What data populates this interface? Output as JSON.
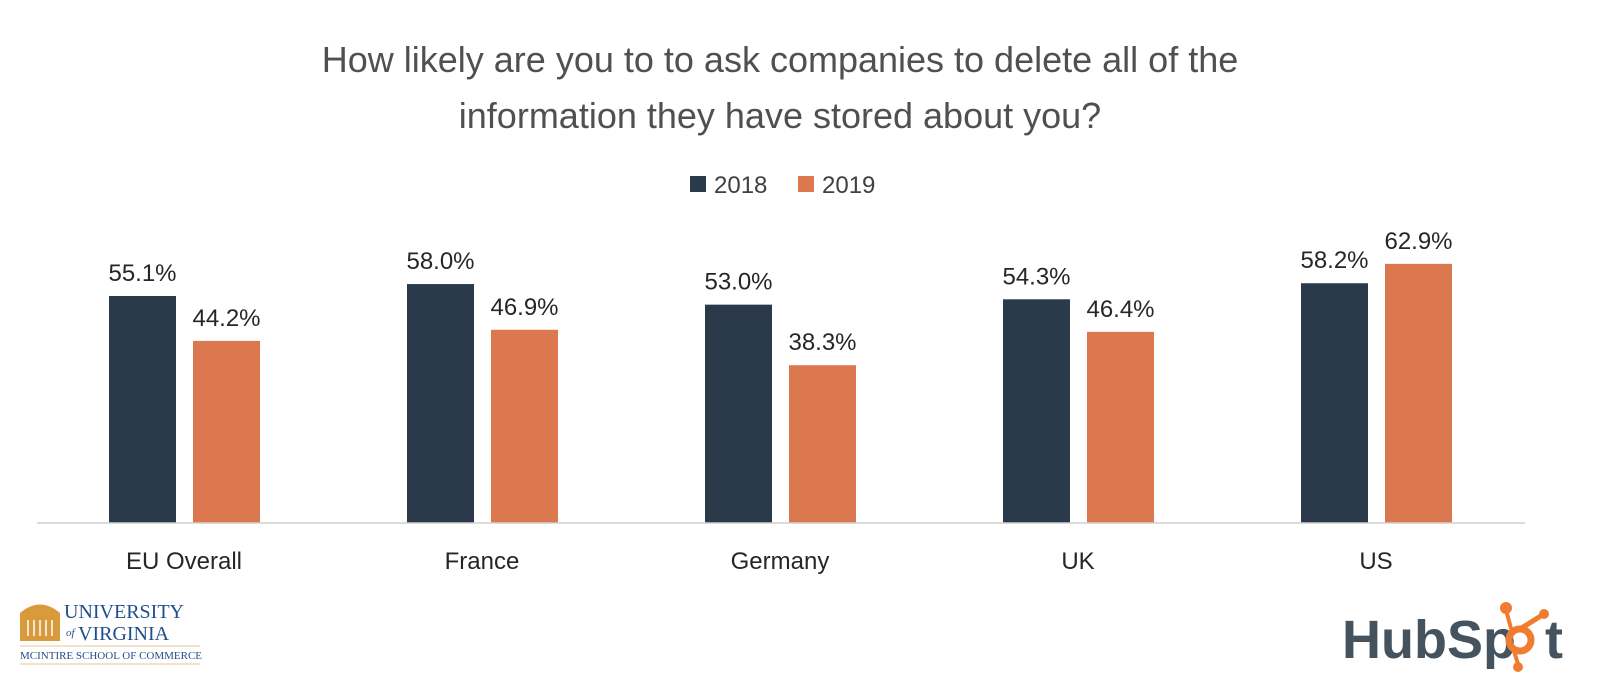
{
  "chart_data": {
    "type": "bar",
    "title": [
      "How likely are you to to ask companies to delete all of the",
      "information they have stored about you?"
    ],
    "categories": [
      "EU Overall",
      "France",
      "Germany",
      "UK",
      "US"
    ],
    "series": [
      {
        "name": "2018",
        "color": "#2b3a4a",
        "values": [
          55.1,
          58.0,
          53.0,
          54.3,
          58.2
        ],
        "labels": [
          "55.1%",
          "58.0%",
          "53.0%",
          "54.3%",
          "58.2%"
        ]
      },
      {
        "name": "2019",
        "color": "#dc7850",
        "values": [
          44.2,
          46.9,
          38.3,
          46.4,
          62.9
        ],
        "labels": [
          "44.2%",
          "46.9%",
          "38.3%",
          "46.4%",
          "62.9%"
        ]
      }
    ],
    "ylim": [
      0,
      100
    ],
    "legend": "top-center",
    "grid": false
  },
  "logos": {
    "left": "University of Virginia McIntire School of Commerce",
    "right": "HubSpot"
  }
}
